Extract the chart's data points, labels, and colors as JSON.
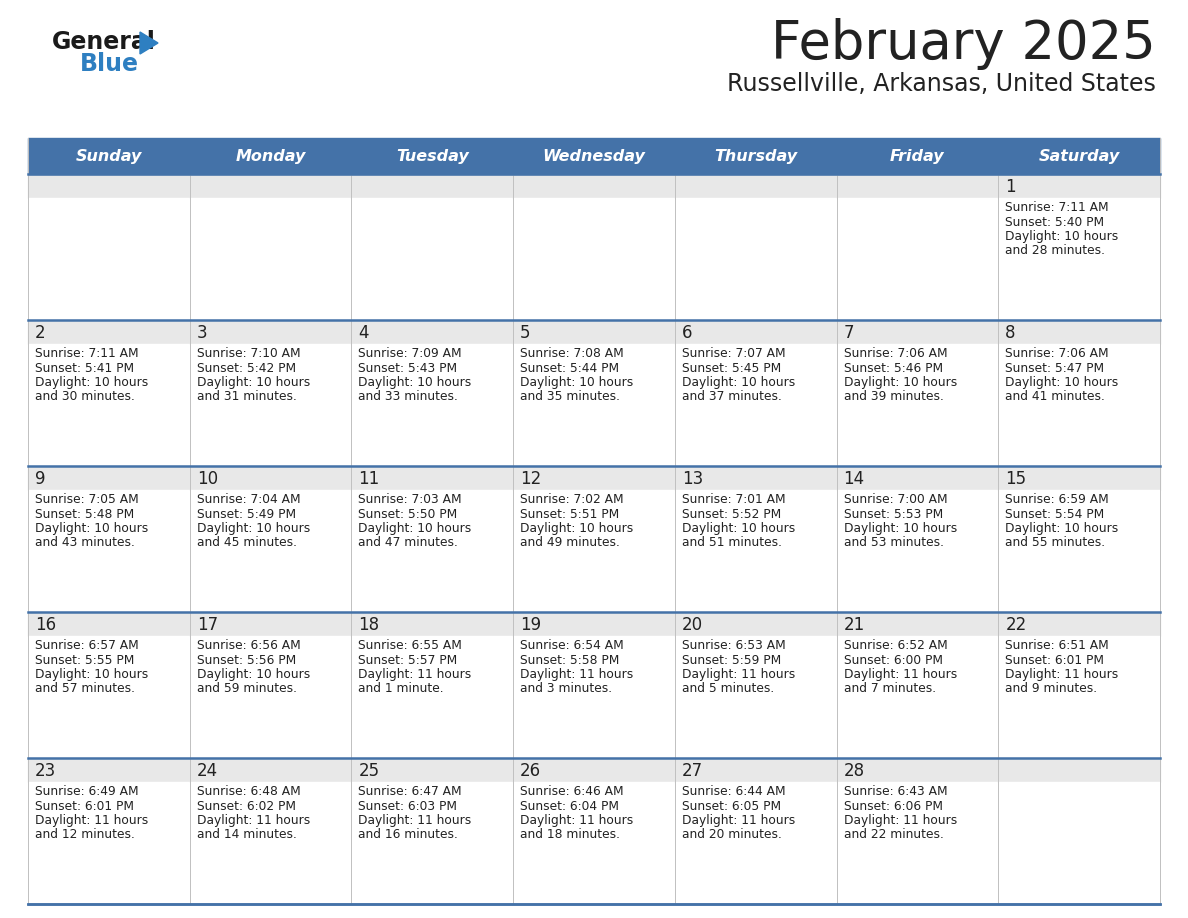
{
  "title": "February 2025",
  "subtitle": "Russellville, Arkansas, United States",
  "days_of_week": [
    "Sunday",
    "Monday",
    "Tuesday",
    "Wednesday",
    "Thursday",
    "Friday",
    "Saturday"
  ],
  "header_bg": "#4472a8",
  "header_text": "#ffffff",
  "cell_bg_day": "#e8e8e8",
  "cell_bg_info": "#ffffff",
  "separator_color": "#4472a8",
  "grid_color": "#c0c0c0",
  "text_color": "#222222",
  "title_color": "#222222",
  "logo_general_color": "#1a1a1a",
  "logo_blue_color": "#2e7fc1",
  "logo_triangle_color": "#2e7fc1",
  "calendar_data": [
    [
      null,
      null,
      null,
      null,
      null,
      null,
      {
        "day": "1",
        "sunrise": "7:11 AM",
        "sunset": "5:40 PM",
        "daylight_line1": "Daylight: 10 hours",
        "daylight_line2": "and 28 minutes."
      }
    ],
    [
      {
        "day": "2",
        "sunrise": "7:11 AM",
        "sunset": "5:41 PM",
        "daylight_line1": "Daylight: 10 hours",
        "daylight_line2": "and 30 minutes."
      },
      {
        "day": "3",
        "sunrise": "7:10 AM",
        "sunset": "5:42 PM",
        "daylight_line1": "Daylight: 10 hours",
        "daylight_line2": "and 31 minutes."
      },
      {
        "day": "4",
        "sunrise": "7:09 AM",
        "sunset": "5:43 PM",
        "daylight_line1": "Daylight: 10 hours",
        "daylight_line2": "and 33 minutes."
      },
      {
        "day": "5",
        "sunrise": "7:08 AM",
        "sunset": "5:44 PM",
        "daylight_line1": "Daylight: 10 hours",
        "daylight_line2": "and 35 minutes."
      },
      {
        "day": "6",
        "sunrise": "7:07 AM",
        "sunset": "5:45 PM",
        "daylight_line1": "Daylight: 10 hours",
        "daylight_line2": "and 37 minutes."
      },
      {
        "day": "7",
        "sunrise": "7:06 AM",
        "sunset": "5:46 PM",
        "daylight_line1": "Daylight: 10 hours",
        "daylight_line2": "and 39 minutes."
      },
      {
        "day": "8",
        "sunrise": "7:06 AM",
        "sunset": "5:47 PM",
        "daylight_line1": "Daylight: 10 hours",
        "daylight_line2": "and 41 minutes."
      }
    ],
    [
      {
        "day": "9",
        "sunrise": "7:05 AM",
        "sunset": "5:48 PM",
        "daylight_line1": "Daylight: 10 hours",
        "daylight_line2": "and 43 minutes."
      },
      {
        "day": "10",
        "sunrise": "7:04 AM",
        "sunset": "5:49 PM",
        "daylight_line1": "Daylight: 10 hours",
        "daylight_line2": "and 45 minutes."
      },
      {
        "day": "11",
        "sunrise": "7:03 AM",
        "sunset": "5:50 PM",
        "daylight_line1": "Daylight: 10 hours",
        "daylight_line2": "and 47 minutes."
      },
      {
        "day": "12",
        "sunrise": "7:02 AM",
        "sunset": "5:51 PM",
        "daylight_line1": "Daylight: 10 hours",
        "daylight_line2": "and 49 minutes."
      },
      {
        "day": "13",
        "sunrise": "7:01 AM",
        "sunset": "5:52 PM",
        "daylight_line1": "Daylight: 10 hours",
        "daylight_line2": "and 51 minutes."
      },
      {
        "day": "14",
        "sunrise": "7:00 AM",
        "sunset": "5:53 PM",
        "daylight_line1": "Daylight: 10 hours",
        "daylight_line2": "and 53 minutes."
      },
      {
        "day": "15",
        "sunrise": "6:59 AM",
        "sunset": "5:54 PM",
        "daylight_line1": "Daylight: 10 hours",
        "daylight_line2": "and 55 minutes."
      }
    ],
    [
      {
        "day": "16",
        "sunrise": "6:57 AM",
        "sunset": "5:55 PM",
        "daylight_line1": "Daylight: 10 hours",
        "daylight_line2": "and 57 minutes."
      },
      {
        "day": "17",
        "sunrise": "6:56 AM",
        "sunset": "5:56 PM",
        "daylight_line1": "Daylight: 10 hours",
        "daylight_line2": "and 59 minutes."
      },
      {
        "day": "18",
        "sunrise": "6:55 AM",
        "sunset": "5:57 PM",
        "daylight_line1": "Daylight: 11 hours",
        "daylight_line2": "and 1 minute."
      },
      {
        "day": "19",
        "sunrise": "6:54 AM",
        "sunset": "5:58 PM",
        "daylight_line1": "Daylight: 11 hours",
        "daylight_line2": "and 3 minutes."
      },
      {
        "day": "20",
        "sunrise": "6:53 AM",
        "sunset": "5:59 PM",
        "daylight_line1": "Daylight: 11 hours",
        "daylight_line2": "and 5 minutes."
      },
      {
        "day": "21",
        "sunrise": "6:52 AM",
        "sunset": "6:00 PM",
        "daylight_line1": "Daylight: 11 hours",
        "daylight_line2": "and 7 minutes."
      },
      {
        "day": "22",
        "sunrise": "6:51 AM",
        "sunset": "6:01 PM",
        "daylight_line1": "Daylight: 11 hours",
        "daylight_line2": "and 9 minutes."
      }
    ],
    [
      {
        "day": "23",
        "sunrise": "6:49 AM",
        "sunset": "6:01 PM",
        "daylight_line1": "Daylight: 11 hours",
        "daylight_line2": "and 12 minutes."
      },
      {
        "day": "24",
        "sunrise": "6:48 AM",
        "sunset": "6:02 PM",
        "daylight_line1": "Daylight: 11 hours",
        "daylight_line2": "and 14 minutes."
      },
      {
        "day": "25",
        "sunrise": "6:47 AM",
        "sunset": "6:03 PM",
        "daylight_line1": "Daylight: 11 hours",
        "daylight_line2": "and 16 minutes."
      },
      {
        "day": "26",
        "sunrise": "6:46 AM",
        "sunset": "6:04 PM",
        "daylight_line1": "Daylight: 11 hours",
        "daylight_line2": "and 18 minutes."
      },
      {
        "day": "27",
        "sunrise": "6:44 AM",
        "sunset": "6:05 PM",
        "daylight_line1": "Daylight: 11 hours",
        "daylight_line2": "and 20 minutes."
      },
      {
        "day": "28",
        "sunrise": "6:43 AM",
        "sunset": "6:06 PM",
        "daylight_line1": "Daylight: 11 hours",
        "daylight_line2": "and 22 minutes."
      },
      null
    ]
  ]
}
